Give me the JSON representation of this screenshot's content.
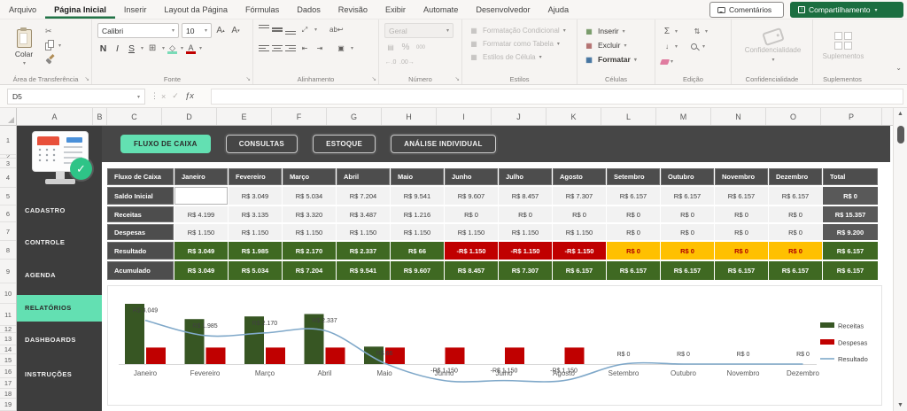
{
  "ribbon": {
    "tabs": [
      "Arquivo",
      "Página Inicial",
      "Inserir",
      "Layout da Página",
      "Fórmulas",
      "Dados",
      "Revisão",
      "Exibir",
      "Automate",
      "Desenvolvedor",
      "Ajuda"
    ],
    "active_tab": "Página Inicial",
    "comments": "Comentários",
    "share": "Compartilhamento",
    "group_labels": [
      "Área de Transferência",
      "Fonte",
      "Alinhamento",
      "Número",
      "Estilos",
      "Células",
      "Edição",
      "Confidencialidade",
      "Suplementos"
    ],
    "paste": "Colar",
    "font_name": "Calibri",
    "font_size": "10",
    "font_styles": [
      "N",
      "I",
      "S"
    ],
    "number_format": "Geral",
    "number_icons": [
      "%",
      "000"
    ],
    "styles_buttons": [
      "Formatação Condicional",
      "Formatar como Tabela",
      "Estilos de Célula"
    ],
    "cells_buttons": [
      "Inserir",
      "Excluir",
      "Formatar"
    ],
    "edit_sigma": "Σ",
    "confidentiality": "Confidencialidade",
    "addins": "Suplementos"
  },
  "formula_bar": {
    "name_box": "D5",
    "formula": ""
  },
  "grid": {
    "columns": [
      "A",
      "B",
      "C",
      "D",
      "E",
      "F",
      "G",
      "H",
      "I",
      "J",
      "K",
      "L",
      "M",
      "N",
      "O",
      "P"
    ],
    "rows": [
      "1",
      "2",
      "3",
      "4",
      "5",
      "6",
      "7",
      "8",
      "9",
      "10",
      "11",
      "12",
      "13",
      "14",
      "15",
      "16",
      "17",
      "18",
      "19"
    ]
  },
  "sidebar": {
    "items": [
      {
        "label": "CADASTRO",
        "active": false
      },
      {
        "label": "CONTROLE",
        "active": false
      },
      {
        "label": "AGENDA",
        "active": false
      },
      {
        "label": "RELATÓRIOS",
        "active": true
      },
      {
        "label": "DASHBOARDS",
        "active": false
      },
      {
        "label": "INSTRUÇÕES",
        "active": false
      }
    ]
  },
  "nav": {
    "buttons": [
      {
        "label": "FLUXO DE CAIXA",
        "active": true
      },
      {
        "label": "CONSULTAS",
        "active": false
      },
      {
        "label": "ESTOQUE",
        "active": false
      },
      {
        "label": "ANÁLISE INDIVIDUAL",
        "active": false
      }
    ]
  },
  "table": {
    "header_label": "Fluxo de Caixa",
    "months": [
      "Janeiro",
      "Fevereiro",
      "Março",
      "Abril",
      "Maio",
      "Junho",
      "Julho",
      "Agosto",
      "Setembro",
      "Outubro",
      "Novembro",
      "Dezembro"
    ],
    "total_label": "Total",
    "rows": [
      {
        "label": "Saldo Inicial",
        "values": [
          "",
          "R$ 3.049",
          "R$ 5.034",
          "R$ 7.204",
          "R$ 9.541",
          "R$ 9.607",
          "R$ 8.457",
          "R$ 7.307",
          "R$ 6.157",
          "R$ 6.157",
          "R$ 6.157",
          "R$ 6.157"
        ],
        "styles": [
          "selected",
          "data",
          "data",
          "data",
          "data",
          "data",
          "data",
          "data",
          "data",
          "data",
          "data",
          "data"
        ],
        "total": "R$ 0",
        "total_style": "gray"
      },
      {
        "label": "Receitas",
        "values": [
          "R$ 4.199",
          "R$ 3.135",
          "R$ 3.320",
          "R$ 3.487",
          "R$ 1.216",
          "R$ 0",
          "R$ 0",
          "R$ 0",
          "R$ 0",
          "R$ 0",
          "R$ 0",
          "R$ 0"
        ],
        "styles": [
          "data",
          "data",
          "data",
          "data",
          "data",
          "data",
          "data",
          "data",
          "data",
          "data",
          "data",
          "data"
        ],
        "total": "R$ 15.357",
        "total_style": "gray"
      },
      {
        "label": "Despesas",
        "values": [
          "R$ 1.150",
          "R$ 1.150",
          "R$ 1.150",
          "R$ 1.150",
          "R$ 1.150",
          "R$ 1.150",
          "R$ 1.150",
          "R$ 1.150",
          "R$ 0",
          "R$ 0",
          "R$ 0",
          "R$ 0"
        ],
        "styles": [
          "data",
          "data",
          "data",
          "data",
          "data",
          "data",
          "data",
          "data",
          "data",
          "data",
          "data",
          "data"
        ],
        "total": "R$ 9.200",
        "total_style": "gray"
      },
      {
        "label": "Resultado",
        "values": [
          "R$ 3.049",
          "R$ 1.985",
          "R$ 2.170",
          "R$ 2.337",
          "R$ 66",
          "-R$ 1.150",
          "-R$ 1.150",
          "-R$ 1.150",
          "R$ 0",
          "R$ 0",
          "R$ 0",
          "R$ 0"
        ],
        "styles": [
          "green",
          "green",
          "green",
          "green",
          "green",
          "red",
          "red",
          "red",
          "yellow",
          "yellow",
          "yellow",
          "yellow"
        ],
        "total": "R$ 6.157",
        "total_style": "green"
      },
      {
        "label": "Acumulado",
        "values": [
          "R$ 3.049",
          "R$ 5.034",
          "R$ 7.204",
          "R$ 9.541",
          "R$ 9.607",
          "R$ 8.457",
          "R$ 7.307",
          "R$ 6.157",
          "R$ 6.157",
          "R$ 6.157",
          "R$ 6.157",
          "R$ 6.157"
        ],
        "styles": [
          "green",
          "green",
          "green",
          "green",
          "green",
          "green",
          "green",
          "green",
          "green",
          "green",
          "green",
          "green"
        ],
        "total": "R$ 6.157",
        "total_style": "green"
      }
    ]
  },
  "chart_data": {
    "type": "combo",
    "categories": [
      "Janeiro",
      "Fevereiro",
      "Março",
      "Abril",
      "Maio",
      "Junho",
      "Julho",
      "Agosto",
      "Setembro",
      "Outubro",
      "Novembro",
      "Dezembro"
    ],
    "series": [
      {
        "name": "Receitas",
        "type": "bar",
        "color": "#375623",
        "values": [
          4199,
          3135,
          3320,
          3487,
          1216,
          0,
          0,
          0,
          0,
          0,
          0,
          0
        ]
      },
      {
        "name": "Despesas",
        "type": "bar",
        "color": "#c00000",
        "values": [
          1150,
          1150,
          1150,
          1150,
          1150,
          1150,
          1150,
          1150,
          0,
          0,
          0,
          0
        ]
      },
      {
        "name": "Resultado",
        "type": "line",
        "color": "#7fa8c9",
        "values": [
          3049,
          1985,
          2170,
          2337,
          66,
          -1150,
          -1150,
          -1150,
          0,
          0,
          0,
          0
        ],
        "labels": [
          "R$ 3.049",
          "R$ 1.985",
          "R$ 2.170",
          "R$ 2.337",
          "R$ 66",
          "-R$ 1.150",
          "-R$ 1.150",
          "-R$ 1.150",
          "R$ 0",
          "R$ 0",
          "R$ 0",
          "R$ 0"
        ]
      }
    ],
    "legend_position": "right",
    "ylim": [
      -1600,
      4600
    ],
    "grid": false
  },
  "colors": {
    "accent_mint": "#63e0b2",
    "excel_green": "#217346",
    "positive_green": "#3f6922",
    "negative_red": "#c00000",
    "neutral_yellow": "#ffc000",
    "line_blue": "#7fa8c9"
  }
}
